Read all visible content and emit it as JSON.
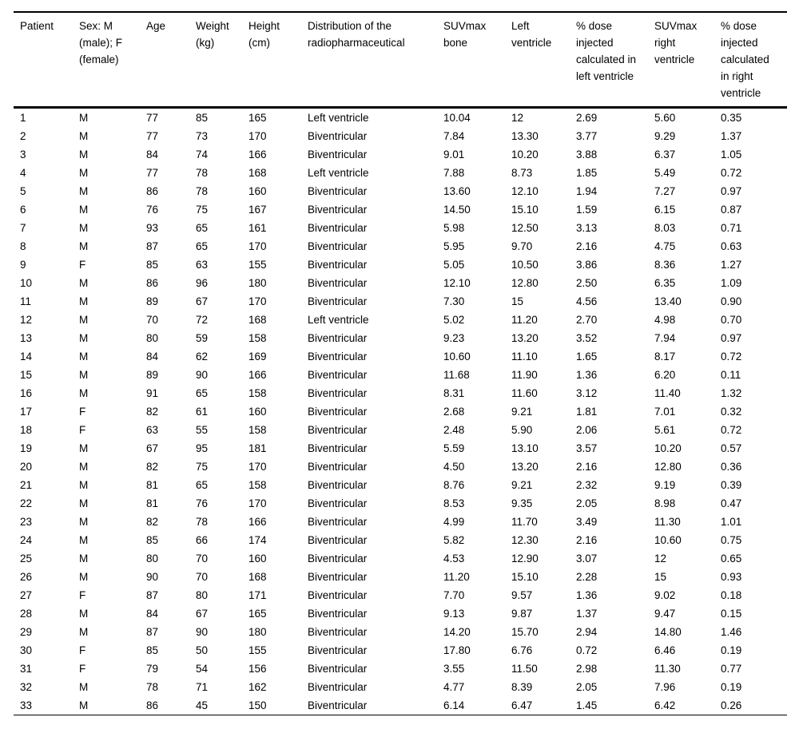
{
  "style": {
    "background": "#ffffff",
    "text_color": "#000000",
    "rule_color": "#000000"
  },
  "table": {
    "columns": [
      "Patient",
      "Sex: M (male); F (female)",
      "Age",
      "Weight (kg)",
      "Height (cm)",
      "Distribution of the radiopharmaceutical",
      "SUVmax bone",
      "Left ventricle",
      "% dose injected calculated in left ventricle",
      "SUVmax right ventricle",
      "% dose injected calculated in right ventricle"
    ],
    "rows": [
      [
        "1",
        "M",
        "77",
        "85",
        "165",
        "Left ventricle",
        "10.04",
        "12",
        "2.69",
        "5.60",
        "0.35"
      ],
      [
        "2",
        "M",
        "77",
        "73",
        "170",
        "Biventricular",
        "7.84",
        "13.30",
        "3.77",
        "9.29",
        "1.37"
      ],
      [
        "3",
        "M",
        "84",
        "74",
        "166",
        "Biventricular",
        "9.01",
        "10.20",
        "3.88",
        "6.37",
        "1.05"
      ],
      [
        "4",
        "M",
        "77",
        "78",
        "168",
        "Left ventricle",
        "7.88",
        "8.73",
        "1.85",
        "5.49",
        "0.72"
      ],
      [
        "5",
        "M",
        "86",
        "78",
        "160",
        "Biventricular",
        "13.60",
        "12.10",
        "1.94",
        "7.27",
        "0.97"
      ],
      [
        "6",
        "M",
        "76",
        "75",
        "167",
        "Biventricular",
        "14.50",
        "15.10",
        "1.59",
        "6.15",
        "0.87"
      ],
      [
        "7",
        "M",
        "93",
        "65",
        "161",
        "Biventricular",
        "5.98",
        "12.50",
        "3.13",
        "8.03",
        "0.71"
      ],
      [
        "8",
        "M",
        "87",
        "65",
        "170",
        "Biventricular",
        "5.95",
        "9.70",
        "2.16",
        "4.75",
        "0.63"
      ],
      [
        "9",
        "F",
        "85",
        "63",
        "155",
        "Biventricular",
        "5.05",
        "10.50",
        "3.86",
        "8.36",
        "1.27"
      ],
      [
        "10",
        "M",
        "86",
        "96",
        "180",
        "Biventricular",
        "12.10",
        "12.80",
        "2.50",
        "6.35",
        "1.09"
      ],
      [
        "11",
        "M",
        "89",
        "67",
        "170",
        "Biventricular",
        "7.30",
        "15",
        "4.56",
        "13.40",
        "0.90"
      ],
      [
        "12",
        "M",
        "70",
        "72",
        "168",
        "Left ventricle",
        "5.02",
        "11.20",
        "2.70",
        "4.98",
        "0.70"
      ],
      [
        "13",
        "M",
        "80",
        "59",
        "158",
        "Biventricular",
        "9.23",
        "13.20",
        "3.52",
        "7.94",
        "0.97"
      ],
      [
        "14",
        "M",
        "84",
        "62",
        "169",
        "Biventricular",
        "10.60",
        "11.10",
        "1.65",
        "8.17",
        "0.72"
      ],
      [
        "15",
        "M",
        "89",
        "90",
        "166",
        "Biventricular",
        "11.68",
        "11.90",
        "1.36",
        "6.20",
        "0.11"
      ],
      [
        "16",
        "M",
        "91",
        "65",
        "158",
        "Biventricular",
        "8.31",
        "11.60",
        "3.12",
        "11.40",
        "1.32"
      ],
      [
        "17",
        "F",
        "82",
        "61",
        "160",
        "Biventricular",
        "2.68",
        "9.21",
        "1.81",
        "7.01",
        "0.32"
      ],
      [
        "18",
        "F",
        "63",
        "55",
        "158",
        "Biventricular",
        "2.48",
        "5.90",
        "2.06",
        "5.61",
        "0.72"
      ],
      [
        "19",
        "M",
        "67",
        "95",
        "181",
        "Biventricular",
        "5.59",
        "13.10",
        "3.57",
        "10.20",
        "0.57"
      ],
      [
        "20",
        "M",
        "82",
        "75",
        "170",
        "Biventricular",
        "4.50",
        "13.20",
        "2.16",
        "12.80",
        "0.36"
      ],
      [
        "21",
        "M",
        "81",
        "65",
        "158",
        "Biventricular",
        "8.76",
        "9.21",
        "2.32",
        "9.19",
        "0.39"
      ],
      [
        "22",
        "M",
        "81",
        "76",
        "170",
        "Biventricular",
        "8.53",
        "9.35",
        "2.05",
        "8.98",
        "0.47"
      ],
      [
        "23",
        "M",
        "82",
        "78",
        "166",
        "Biventricular",
        "4.99",
        "11.70",
        "3.49",
        "11.30",
        "1.01"
      ],
      [
        "24",
        "M",
        "85",
        "66",
        "174",
        "Biventricular",
        "5.82",
        "12.30",
        "2.16",
        "10.60",
        "0.75"
      ],
      [
        "25",
        "M",
        "80",
        "70",
        "160",
        "Biventricular",
        "4.53",
        "12.90",
        "3.07",
        "12",
        "0.65"
      ],
      [
        "26",
        "M",
        "90",
        "70",
        "168",
        "Biventricular",
        "11.20",
        "15.10",
        "2.28",
        "15",
        "0.93"
      ],
      [
        "27",
        "F",
        "87",
        "80",
        "171",
        "Biventricular",
        "7.70",
        "9.57",
        "1.36",
        "9.02",
        "0.18"
      ],
      [
        "28",
        "M",
        "84",
        "67",
        "165",
        "Biventricular",
        "9.13",
        "9.87",
        "1.37",
        "9.47",
        "0.15"
      ],
      [
        "29",
        "M",
        "87",
        "90",
        "180",
        "Biventricular",
        "14.20",
        "15.70",
        "2.94",
        "14.80",
        "1.46"
      ],
      [
        "30",
        "F",
        "85",
        "50",
        "155",
        "Biventricular",
        "17.80",
        "6.76",
        "0.72",
        "6.46",
        "0.19"
      ],
      [
        "31",
        "F",
        "79",
        "54",
        "156",
        "Biventricular",
        "3.55",
        "11.50",
        "2.98",
        "11.30",
        "0.77"
      ],
      [
        "32",
        "M",
        "78",
        "71",
        "162",
        "Biventricular",
        "4.77",
        "8.39",
        "2.05",
        "7.96",
        "0.19"
      ],
      [
        "33",
        "M",
        "86",
        "45",
        "150",
        "Biventricular",
        "6.14",
        "6.47",
        "1.45",
        "6.42",
        "0.26"
      ]
    ]
  }
}
